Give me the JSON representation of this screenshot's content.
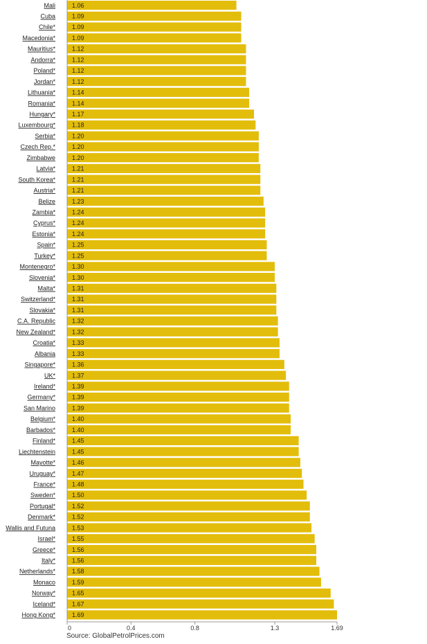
{
  "chart_data": {
    "type": "bar",
    "orientation": "horizontal",
    "categories": [
      "Mali",
      "Cuba",
      "Chile*",
      "Macedonia*",
      "Mauritius*",
      "Andorra*",
      "Poland*",
      "Jordan*",
      "Lithuania*",
      "Romania*",
      "Hungary*",
      "Luxembourg*",
      "Serbia*",
      "Czech Rep.*",
      "Zimbabwe",
      "Latvia*",
      "South Korea*",
      "Austria*",
      "Belize",
      "Zambia*",
      "Cyprus*",
      "Estonia*",
      "Spain*",
      "Turkey*",
      "Montenegro*",
      "Slovenia*",
      "Malta*",
      "Switzerland*",
      "Slovakia*",
      "C.A. Republic",
      "New Zealand*",
      "Croatia*",
      "Albania",
      "Singapore*",
      "UK*",
      "Ireland*",
      "Germany*",
      "San Marino",
      "Belgium*",
      "Barbados*",
      "Finland*",
      "Liechtenstein",
      "Mayotte*",
      "Uruguay*",
      "France*",
      "Sweden*",
      "Portugal*",
      "Denmark*",
      "Wallis and Futuna",
      "Israel*",
      "Greece*",
      "Italy*",
      "Netherlands*",
      "Monaco",
      "Norway*",
      "Iceland*",
      "Hong Kong*"
    ],
    "values": [
      1.06,
      1.09,
      1.09,
      1.09,
      1.12,
      1.12,
      1.12,
      1.12,
      1.14,
      1.14,
      1.17,
      1.18,
      1.2,
      1.2,
      1.2,
      1.21,
      1.21,
      1.21,
      1.23,
      1.24,
      1.24,
      1.24,
      1.25,
      1.25,
      1.3,
      1.3,
      1.31,
      1.31,
      1.31,
      1.32,
      1.32,
      1.33,
      1.33,
      1.36,
      1.37,
      1.39,
      1.39,
      1.39,
      1.4,
      1.4,
      1.45,
      1.45,
      1.46,
      1.47,
      1.48,
      1.5,
      1.52,
      1.52,
      1.53,
      1.55,
      1.56,
      1.56,
      1.58,
      1.59,
      1.65,
      1.67,
      1.69
    ],
    "value_labels": [
      "1.06",
      "1.09",
      "1.09",
      "1.09",
      "1.12",
      "1.12",
      "1.12",
      "1.12",
      "1.14",
      "1.14",
      "1.17",
      "1.18",
      "1.20",
      "1.20",
      "1.20",
      "1.21",
      "1.21",
      "1.21",
      "1.23",
      "1.24",
      "1.24",
      "1.24",
      "1.25",
      "1.25",
      "1.30",
      "1.30",
      "1.31",
      "1.31",
      "1.31",
      "1.32",
      "1.32",
      "1.33",
      "1.33",
      "1.36",
      "1.37",
      "1.39",
      "1.39",
      "1.39",
      "1.40",
      "1.40",
      "1.45",
      "1.45",
      "1.46",
      "1.47",
      "1.48",
      "1.50",
      "1.52",
      "1.52",
      "1.53",
      "1.55",
      "1.56",
      "1.56",
      "1.58",
      "1.59",
      "1.65",
      "1.67",
      "1.69"
    ],
    "xlim": [
      0,
      1.69
    ],
    "ticks": [
      0,
      0.4,
      0.8,
      1.3,
      1.69
    ],
    "tick_labels": [
      "0",
      "0.4",
      "0.8",
      "1.3",
      "1.69"
    ],
    "grid": false,
    "legend": false,
    "colors": {
      "bar": "#E3BD0B",
      "axis": "#999999",
      "text": "#222222"
    }
  },
  "source": "Source: GlobalPetrolPrices.com"
}
